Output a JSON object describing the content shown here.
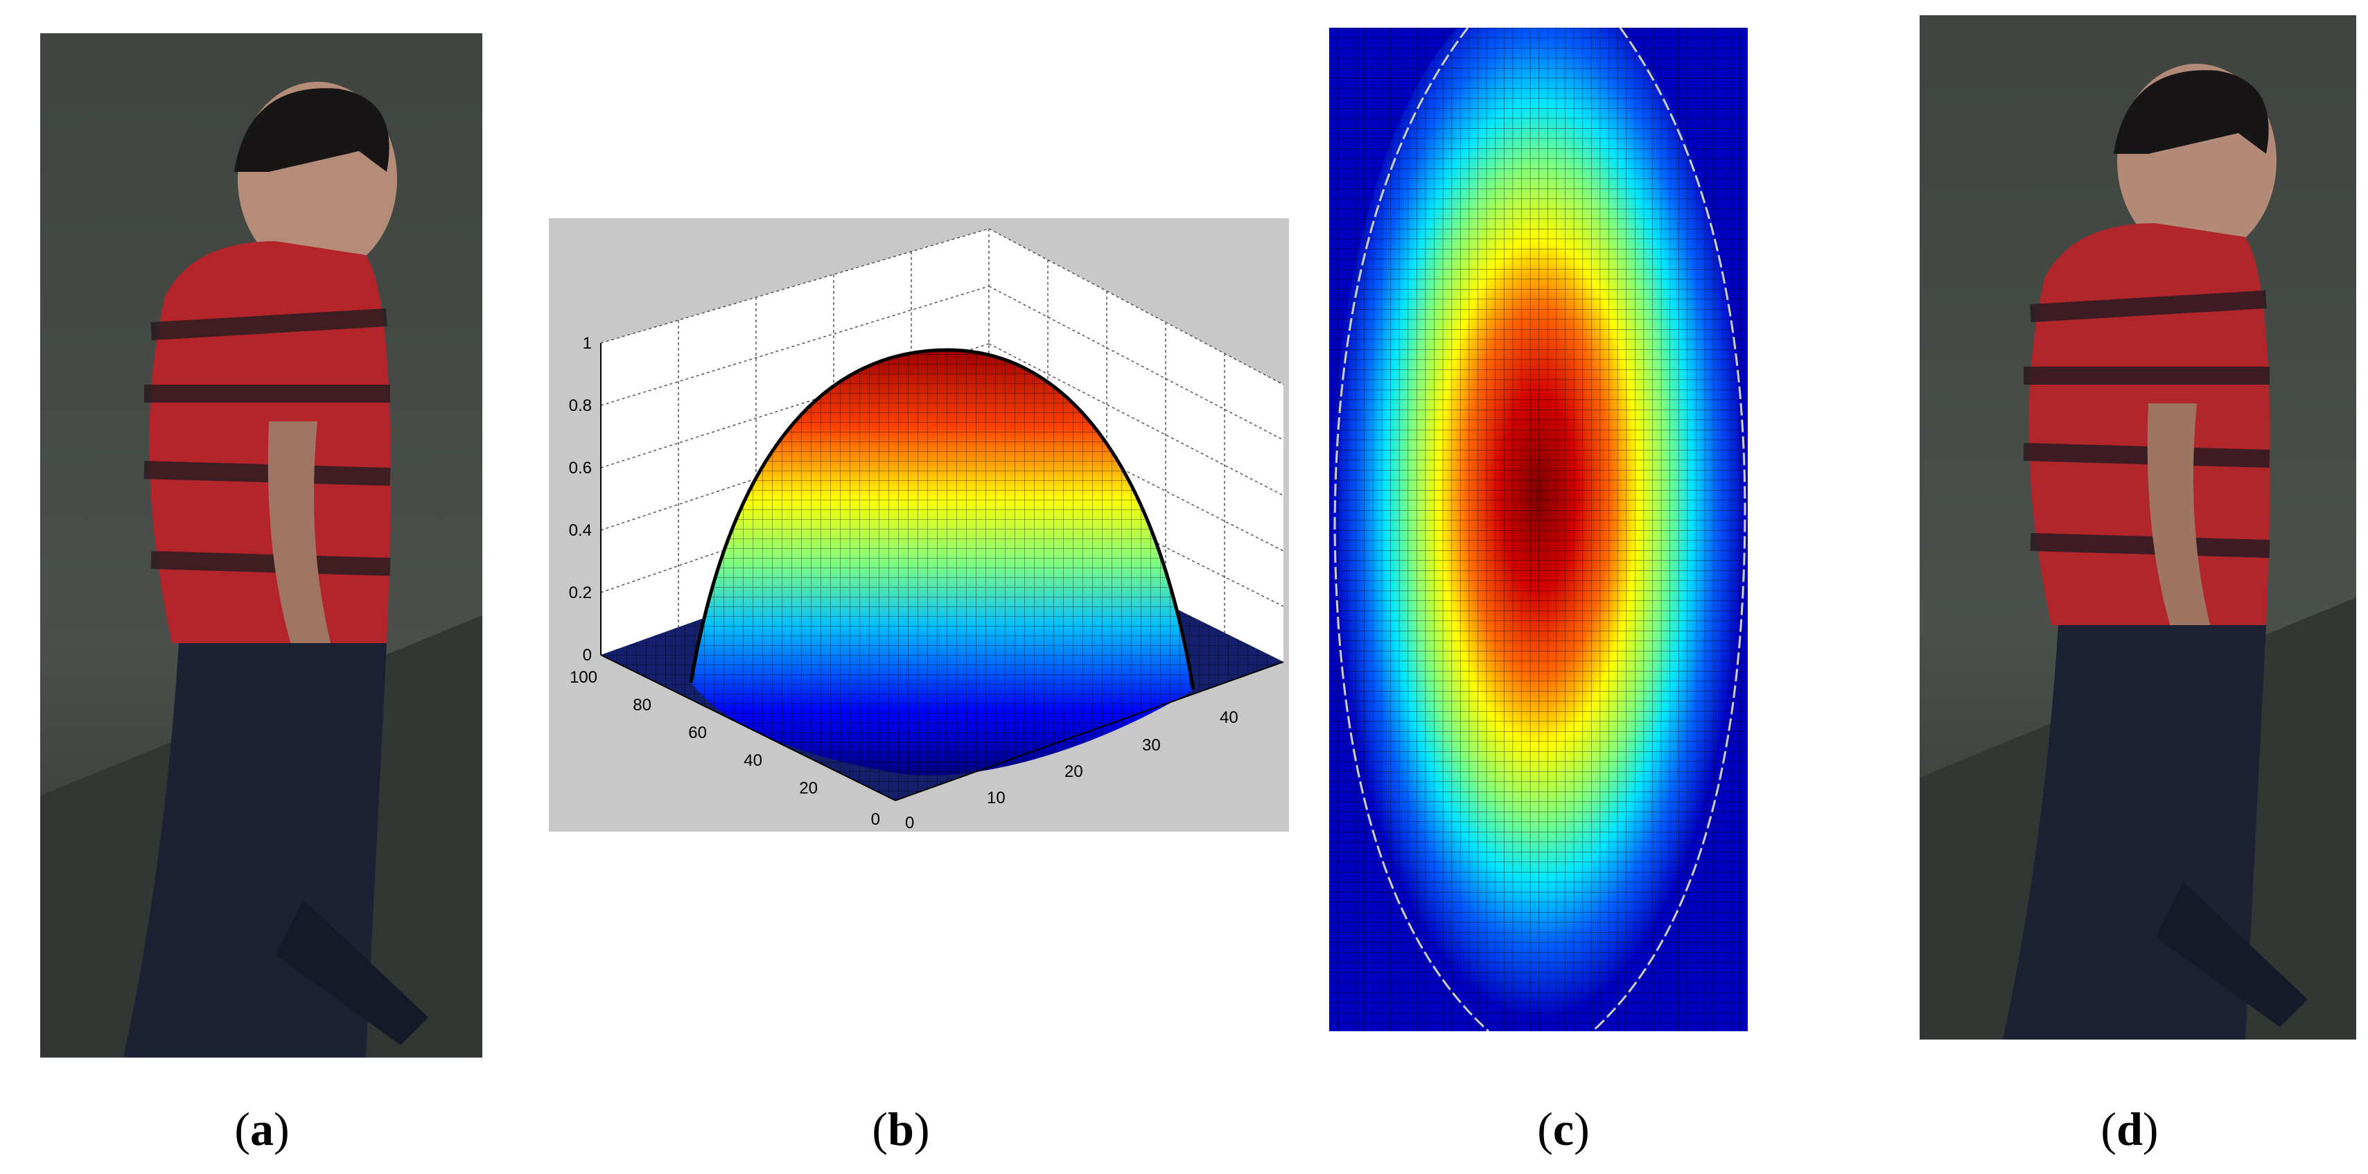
{
  "figure": {
    "captions": [
      {
        "open": "(",
        "letter": "a",
        "close": ")"
      },
      {
        "open": "(",
        "letter": "b",
        "close": ")"
      },
      {
        "open": "(",
        "letter": "c",
        "close": ")"
      },
      {
        "open": "(",
        "letter": "d",
        "close": ")"
      }
    ],
    "panel_a": {
      "content": "photo of person in red striped shirt walking, side view"
    },
    "panel_b": {
      "z_ticks": [
        "0",
        "0.2",
        "0.4",
        "0.6",
        "0.8",
        "1"
      ],
      "y_ticks": [
        "0",
        "20",
        "40",
        "60",
        "80",
        "100"
      ],
      "x_ticks": [
        "0",
        "10",
        "20",
        "30",
        "40"
      ],
      "colormap": "jet"
    },
    "panel_c": {
      "colormap": "jet",
      "content": "top-down view of weighting surface"
    },
    "panel_d": {
      "content": "photo of same person, background partially suppressed"
    }
  },
  "colors": {
    "background": "#ffffff",
    "plot_gray": "#c8c8c8",
    "low": "#00007f",
    "high": "#7f0000"
  }
}
